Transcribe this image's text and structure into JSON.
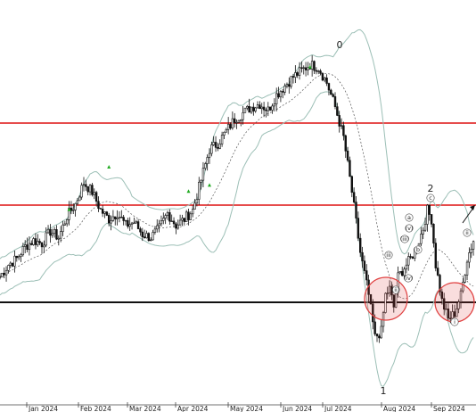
{
  "chart_data": {
    "type": "candlestick",
    "title": "",
    "xlabel": "",
    "ylabel": "",
    "x_tick_labels": [
      "Jan 2024",
      "Feb 2024",
      "Mar 2024",
      "Apr 2024",
      "May 2024",
      "Jun 2024",
      "Jul 2024",
      "Aug 2024",
      "Sep 2024"
    ],
    "y_axis_shown": false,
    "grid": false,
    "indicators": [
      "Bollinger Bands"
    ],
    "colors": {
      "background": "#ffffff",
      "candles": "#111111",
      "bands": "#9cbfb6",
      "middle_band": "#555555",
      "resistance_lines": "#dd1111",
      "support_line": "#111111",
      "highlight_circles": "#e04040",
      "markers": "#22aa22"
    },
    "series_shape": [
      {
        "x": 0,
        "v": 0.24
      },
      {
        "x": 4,
        "v": 0.28
      },
      {
        "x": 8,
        "v": 0.3
      },
      {
        "x": 12,
        "v": 0.34
      },
      {
        "x": 16,
        "v": 0.36
      },
      {
        "x": 20,
        "v": 0.35
      },
      {
        "x": 24,
        "v": 0.39
      },
      {
        "x": 28,
        "v": 0.37
      },
      {
        "x": 32,
        "v": 0.44
      },
      {
        "x": 36,
        "v": 0.48
      },
      {
        "x": 40,
        "v": 0.55
      },
      {
        "x": 44,
        "v": 0.52
      },
      {
        "x": 48,
        "v": 0.46
      },
      {
        "x": 52,
        "v": 0.43
      },
      {
        "x": 56,
        "v": 0.45
      },
      {
        "x": 60,
        "v": 0.41
      },
      {
        "x": 64,
        "v": 0.42
      },
      {
        "x": 68,
        "v": 0.38
      },
      {
        "x": 72,
        "v": 0.37
      },
      {
        "x": 76,
        "v": 0.4
      },
      {
        "x": 80,
        "v": 0.45
      },
      {
        "x": 84,
        "v": 0.41
      },
      {
        "x": 88,
        "v": 0.43
      },
      {
        "x": 92,
        "v": 0.46
      },
      {
        "x": 96,
        "v": 0.56
      },
      {
        "x": 100,
        "v": 0.66
      },
      {
        "x": 104,
        "v": 0.68
      },
      {
        "x": 108,
        "v": 0.72
      },
      {
        "x": 112,
        "v": 0.76
      },
      {
        "x": 116,
        "v": 0.78
      },
      {
        "x": 120,
        "v": 0.8
      },
      {
        "x": 124,
        "v": 0.81
      },
      {
        "x": 128,
        "v": 0.79
      },
      {
        "x": 132,
        "v": 0.84
      },
      {
        "x": 136,
        "v": 0.87
      },
      {
        "x": 140,
        "v": 0.9
      },
      {
        "x": 144,
        "v": 0.92
      },
      {
        "x": 148,
        "v": 0.94
      },
      {
        "x": 152,
        "v": 0.93
      },
      {
        "x": 156,
        "v": 0.88
      },
      {
        "x": 160,
        "v": 0.8
      },
      {
        "x": 164,
        "v": 0.7
      },
      {
        "x": 168,
        "v": 0.52
      },
      {
        "x": 172,
        "v": 0.32
      },
      {
        "x": 176,
        "v": 0.18
      },
      {
        "x": 179,
        "v": 0.04
      },
      {
        "x": 182,
        "v": 0.06
      },
      {
        "x": 184,
        "v": 0.18
      },
      {
        "x": 186,
        "v": 0.2
      },
      {
        "x": 188,
        "v": 0.14
      },
      {
        "x": 190,
        "v": 0.24
      },
      {
        "x": 193,
        "v": 0.27
      },
      {
        "x": 196,
        "v": 0.3
      },
      {
        "x": 199,
        "v": 0.34
      },
      {
        "x": 202,
        "v": 0.4
      },
      {
        "x": 204,
        "v": 0.46
      },
      {
        "x": 206,
        "v": 0.43
      },
      {
        "x": 208,
        "v": 0.28
      },
      {
        "x": 211,
        "v": 0.16
      },
      {
        "x": 214,
        "v": 0.1
      },
      {
        "x": 217,
        "v": 0.12
      },
      {
        "x": 220,
        "v": 0.18
      },
      {
        "x": 223,
        "v": 0.3
      },
      {
        "x": 226,
        "v": 0.36
      }
    ],
    "annotations": {
      "wave_labels_big": [
        "0",
        "1",
        "2"
      ],
      "wave_labels_small": [
        "a",
        "b",
        "c",
        "(v)",
        "(iii)",
        "(iv)",
        "(ii)",
        "i",
        "ii",
        "iii"
      ]
    }
  }
}
